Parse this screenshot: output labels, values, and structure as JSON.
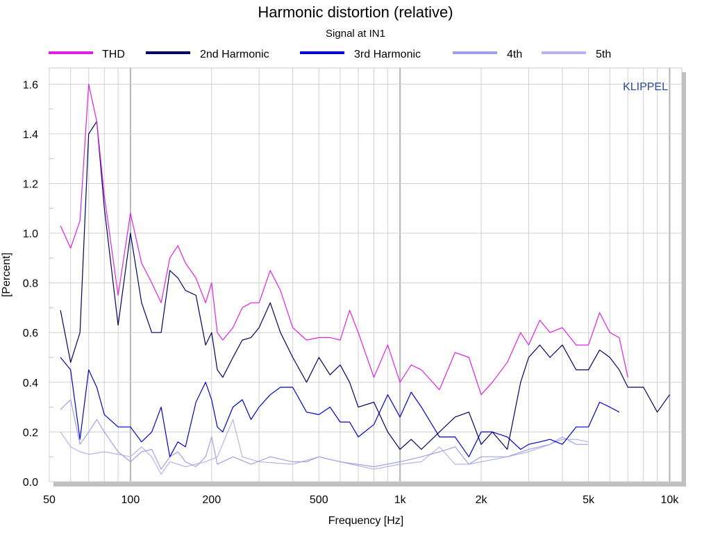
{
  "chart_data": {
    "type": "line",
    "title": "Harmonic distortion (relative)",
    "subtitle": "Signal at IN1",
    "xlabel": "Frequency [Hz]",
    "ylabel": "[Percent]",
    "watermark": "KLIPPEL",
    "xscale": "log",
    "xlim": [
      50,
      11100
    ],
    "ylim": [
      0,
      1.665
    ],
    "grid": true,
    "legend_position": "top",
    "x_ticks": [
      {
        "v": 50,
        "label": "50"
      },
      {
        "v": 100,
        "label": "100"
      },
      {
        "v": 200,
        "label": "200"
      },
      {
        "v": 500,
        "label": "500"
      },
      {
        "v": 1000,
        "label": "1k"
      },
      {
        "v": 2000,
        "label": "2k"
      },
      {
        "v": 5000,
        "label": "5k"
      },
      {
        "v": 10000,
        "label": "10k"
      }
    ],
    "y_ticks": [
      {
        "v": 0,
        "label": "0.0"
      },
      {
        "v": 0.2,
        "label": "0.2"
      },
      {
        "v": 0.4,
        "label": "0.4"
      },
      {
        "v": 0.6,
        "label": "0.6"
      },
      {
        "v": 0.8,
        "label": "0.8"
      },
      {
        "v": 1.0,
        "label": "1.0"
      },
      {
        "v": 1.2,
        "label": "1.2"
      },
      {
        "v": 1.4,
        "label": "1.4"
      },
      {
        "v": 1.6,
        "label": "1.6"
      }
    ],
    "series": [
      {
        "name": "THD",
        "color": "#e020e0",
        "points": [
          [
            55,
            1.03
          ],
          [
            60,
            0.94
          ],
          [
            65,
            1.05
          ],
          [
            70,
            1.6
          ],
          [
            75,
            1.45
          ],
          [
            80,
            1.15
          ],
          [
            90,
            0.75
          ],
          [
            100,
            1.08
          ],
          [
            110,
            0.88
          ],
          [
            120,
            0.8
          ],
          [
            130,
            0.72
          ],
          [
            140,
            0.9
          ],
          [
            150,
            0.95
          ],
          [
            160,
            0.88
          ],
          [
            175,
            0.82
          ],
          [
            190,
            0.72
          ],
          [
            200,
            0.8
          ],
          [
            210,
            0.6
          ],
          [
            220,
            0.57
          ],
          [
            240,
            0.62
          ],
          [
            260,
            0.7
          ],
          [
            280,
            0.72
          ],
          [
            300,
            0.72
          ],
          [
            330,
            0.85
          ],
          [
            360,
            0.77
          ],
          [
            400,
            0.62
          ],
          [
            450,
            0.57
          ],
          [
            500,
            0.58
          ],
          [
            550,
            0.58
          ],
          [
            600,
            0.57
          ],
          [
            650,
            0.69
          ],
          [
            700,
            0.6
          ],
          [
            800,
            0.42
          ],
          [
            900,
            0.55
          ],
          [
            1000,
            0.4
          ],
          [
            1100,
            0.47
          ],
          [
            1200,
            0.45
          ],
          [
            1400,
            0.37
          ],
          [
            1600,
            0.52
          ],
          [
            1800,
            0.5
          ],
          [
            2000,
            0.35
          ],
          [
            2200,
            0.4
          ],
          [
            2500,
            0.48
          ],
          [
            2800,
            0.6
          ],
          [
            3000,
            0.55
          ],
          [
            3300,
            0.65
          ],
          [
            3600,
            0.6
          ],
          [
            4000,
            0.62
          ],
          [
            4500,
            0.55
          ],
          [
            5000,
            0.55
          ],
          [
            5500,
            0.68
          ],
          [
            6000,
            0.6
          ],
          [
            6500,
            0.58
          ],
          [
            7000,
            0.42
          ]
        ]
      },
      {
        "name": "2nd Harmonic",
        "color": "#000060",
        "points": [
          [
            55,
            0.69
          ],
          [
            60,
            0.48
          ],
          [
            65,
            0.6
          ],
          [
            70,
            1.4
          ],
          [
            75,
            1.45
          ],
          [
            80,
            1.1
          ],
          [
            90,
            0.63
          ],
          [
            100,
            1.0
          ],
          [
            110,
            0.72
          ],
          [
            120,
            0.6
          ],
          [
            130,
            0.6
          ],
          [
            140,
            0.85
          ],
          [
            150,
            0.82
          ],
          [
            160,
            0.77
          ],
          [
            175,
            0.75
          ],
          [
            190,
            0.55
          ],
          [
            200,
            0.6
          ],
          [
            210,
            0.45
          ],
          [
            220,
            0.42
          ],
          [
            240,
            0.5
          ],
          [
            260,
            0.57
          ],
          [
            280,
            0.58
          ],
          [
            300,
            0.62
          ],
          [
            330,
            0.72
          ],
          [
            360,
            0.6
          ],
          [
            400,
            0.5
          ],
          [
            450,
            0.4
          ],
          [
            500,
            0.5
          ],
          [
            550,
            0.43
          ],
          [
            600,
            0.47
          ],
          [
            650,
            0.4
          ],
          [
            700,
            0.3
          ],
          [
            800,
            0.32
          ],
          [
            900,
            0.2
          ],
          [
            1000,
            0.13
          ],
          [
            1100,
            0.17
          ],
          [
            1200,
            0.13
          ],
          [
            1400,
            0.2
          ],
          [
            1600,
            0.26
          ],
          [
            1800,
            0.28
          ],
          [
            2000,
            0.15
          ],
          [
            2200,
            0.2
          ],
          [
            2500,
            0.13
          ],
          [
            2800,
            0.4
          ],
          [
            3000,
            0.5
          ],
          [
            3300,
            0.55
          ],
          [
            3600,
            0.5
          ],
          [
            4000,
            0.55
          ],
          [
            4500,
            0.45
          ],
          [
            5000,
            0.45
          ],
          [
            5500,
            0.53
          ],
          [
            6000,
            0.5
          ],
          [
            6500,
            0.45
          ],
          [
            7000,
            0.38
          ],
          [
            8000,
            0.38
          ],
          [
            9000,
            0.28
          ],
          [
            10000,
            0.35
          ]
        ]
      },
      {
        "name": "3rd Harmonic",
        "color": "#0000d0",
        "points": [
          [
            55,
            0.5
          ],
          [
            60,
            0.45
          ],
          [
            65,
            0.17
          ],
          [
            70,
            0.45
          ],
          [
            75,
            0.38
          ],
          [
            80,
            0.27
          ],
          [
            90,
            0.22
          ],
          [
            100,
            0.22
          ],
          [
            110,
            0.16
          ],
          [
            120,
            0.2
          ],
          [
            130,
            0.3
          ],
          [
            140,
            0.1
          ],
          [
            150,
            0.16
          ],
          [
            160,
            0.14
          ],
          [
            175,
            0.32
          ],
          [
            190,
            0.4
          ],
          [
            200,
            0.33
          ],
          [
            210,
            0.22
          ],
          [
            220,
            0.2
          ],
          [
            240,
            0.3
          ],
          [
            260,
            0.33
          ],
          [
            280,
            0.25
          ],
          [
            300,
            0.3
          ],
          [
            330,
            0.35
          ],
          [
            360,
            0.38
          ],
          [
            400,
            0.38
          ],
          [
            450,
            0.28
          ],
          [
            500,
            0.27
          ],
          [
            550,
            0.3
          ],
          [
            600,
            0.24
          ],
          [
            650,
            0.24
          ],
          [
            700,
            0.18
          ],
          [
            800,
            0.23
          ],
          [
            900,
            0.35
          ],
          [
            1000,
            0.26
          ],
          [
            1100,
            0.36
          ],
          [
            1200,
            0.3
          ],
          [
            1400,
            0.18
          ],
          [
            1600,
            0.18
          ],
          [
            1800,
            0.1
          ],
          [
            2000,
            0.2
          ],
          [
            2200,
            0.2
          ],
          [
            2500,
            0.18
          ],
          [
            2800,
            0.13
          ],
          [
            3000,
            0.15
          ],
          [
            3300,
            0.16
          ],
          [
            3600,
            0.17
          ],
          [
            4000,
            0.15
          ],
          [
            4500,
            0.22
          ],
          [
            5000,
            0.22
          ],
          [
            5500,
            0.32
          ],
          [
            6000,
            0.3
          ],
          [
            6500,
            0.28
          ]
        ]
      },
      {
        "name": "4th",
        "color": "#a0a0e8",
        "points": [
          [
            55,
            0.29
          ],
          [
            60,
            0.33
          ],
          [
            65,
            0.15
          ],
          [
            70,
            0.2
          ],
          [
            75,
            0.25
          ],
          [
            80,
            0.2
          ],
          [
            90,
            0.12
          ],
          [
            100,
            0.08
          ],
          [
            110,
            0.12
          ],
          [
            120,
            0.13
          ],
          [
            130,
            0.05
          ],
          [
            140,
            0.1
          ],
          [
            150,
            0.12
          ],
          [
            160,
            0.08
          ],
          [
            175,
            0.06
          ],
          [
            190,
            0.1
          ],
          [
            200,
            0.18
          ],
          [
            210,
            0.07
          ],
          [
            240,
            0.1
          ],
          [
            280,
            0.07
          ],
          [
            330,
            0.1
          ],
          [
            400,
            0.08
          ],
          [
            450,
            0.08
          ],
          [
            500,
            0.1
          ],
          [
            600,
            0.08
          ],
          [
            800,
            0.06
          ],
          [
            1000,
            0.08
          ],
          [
            1200,
            0.1
          ],
          [
            1400,
            0.12
          ],
          [
            1600,
            0.14
          ],
          [
            1800,
            0.07
          ],
          [
            2000,
            0.1
          ],
          [
            2500,
            0.1
          ],
          [
            3000,
            0.13
          ],
          [
            3600,
            0.15
          ],
          [
            4000,
            0.18
          ],
          [
            4500,
            0.15
          ],
          [
            5000,
            0.15
          ]
        ]
      },
      {
        "name": "5th",
        "color": "#b4b4ea",
        "points": [
          [
            55,
            0.2
          ],
          [
            60,
            0.14
          ],
          [
            65,
            0.12
          ],
          [
            70,
            0.11
          ],
          [
            80,
            0.12
          ],
          [
            90,
            0.11
          ],
          [
            100,
            0.1
          ],
          [
            110,
            0.14
          ],
          [
            120,
            0.1
          ],
          [
            130,
            0.03
          ],
          [
            140,
            0.08
          ],
          [
            160,
            0.06
          ],
          [
            190,
            0.08
          ],
          [
            210,
            0.1
          ],
          [
            240,
            0.25
          ],
          [
            260,
            0.1
          ],
          [
            300,
            0.08
          ],
          [
            400,
            0.07
          ],
          [
            500,
            0.1
          ],
          [
            600,
            0.08
          ],
          [
            800,
            0.05
          ],
          [
            1000,
            0.07
          ],
          [
            1200,
            0.08
          ],
          [
            1400,
            0.14
          ],
          [
            1600,
            0.07
          ],
          [
            1800,
            0.07
          ],
          [
            2000,
            0.08
          ],
          [
            2500,
            0.1
          ],
          [
            3000,
            0.12
          ],
          [
            3600,
            0.15
          ],
          [
            4000,
            0.17
          ],
          [
            4500,
            0.17
          ],
          [
            5000,
            0.16
          ]
        ]
      }
    ]
  }
}
